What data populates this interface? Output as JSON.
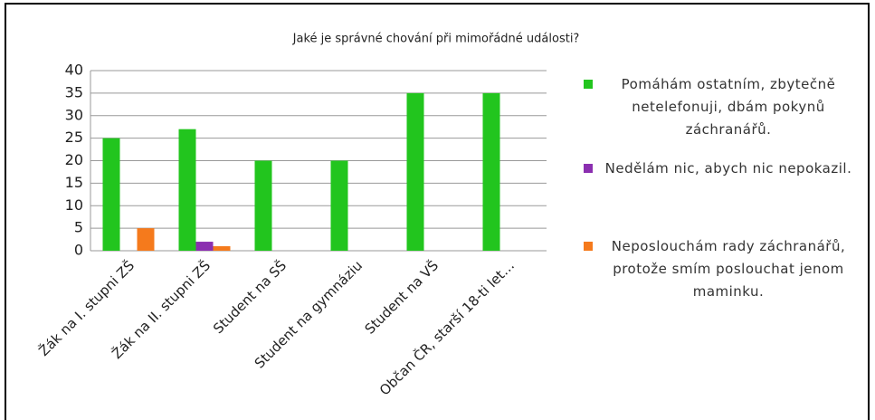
{
  "chart_data": {
    "type": "bar",
    "title": "Jaké je správné chování při mimořádné události?",
    "categories": [
      "Žák na I. stupni ZŠ",
      "Žák na II. stupni ZŠ",
      "Student na SŠ",
      "Student na gymnáziu",
      "Student na VŠ",
      "Občan ČR, starší 18-ti let…"
    ],
    "series": [
      {
        "name": "Pomáhám ostatním, zbytečně netelefonuji, dbám pokynů záchranářů.",
        "color": "#22c51e",
        "values": [
          25,
          27,
          20,
          20,
          35,
          35
        ]
      },
      {
        "name": "Nedělám nic, abych nic nepokazil.",
        "color": "#8b2fb0",
        "values": [
          0,
          2,
          0,
          0,
          0,
          0
        ]
      },
      {
        "name": "Neposlouchám rady záchranářů, protože smím poslouchat jenom maminku.",
        "color": "#f57a1c",
        "values": [
          5,
          1,
          0,
          0,
          0,
          0
        ]
      }
    ],
    "ylim": [
      0,
      40
    ],
    "yticks": [
      0,
      5,
      10,
      15,
      20,
      25,
      30,
      35,
      40
    ],
    "grid": true,
    "legend": "right"
  }
}
